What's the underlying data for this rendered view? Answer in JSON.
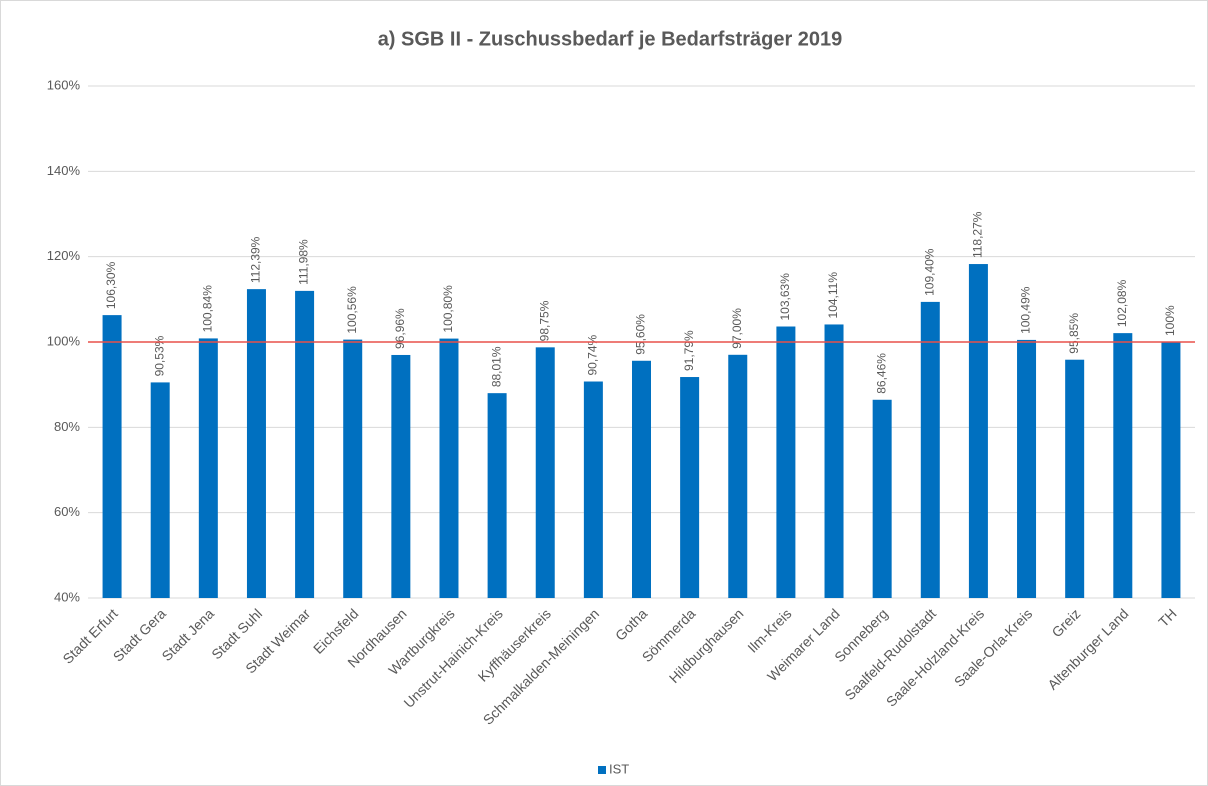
{
  "chart_data": {
    "type": "bar",
    "title": "a) SGB II - Zuschussbedarf je Bedarfsträger 2019",
    "categories": [
      "Stadt Erfurt",
      "Stadt Gera",
      "Stadt Jena",
      "Stadt Suhl",
      "Stadt Weimar",
      "Eichsfeld",
      "Nordhausen",
      "Wartburgkreis",
      "Unstrut-Hainich-Kreis",
      "Kyffhäuserkreis",
      "Schmalkalden-Meiningen",
      "Gotha",
      "Sömmerda",
      "Hildburghausen",
      "Ilm-Kreis",
      "Weimarer Land",
      "Sonneberg",
      "Saalfeld-Rudolstadt",
      "Saale-Holzland-Kreis",
      "Saale-Orla-Kreis",
      "Greiz",
      "Altenburger Land",
      "TH"
    ],
    "series": [
      {
        "name": "IST",
        "color": "#0070c0",
        "values": [
          106.3,
          90.53,
          100.84,
          112.39,
          111.98,
          100.56,
          96.96,
          100.8,
          88.01,
          98.75,
          90.74,
          95.6,
          91.79,
          97.0,
          103.63,
          104.11,
          86.46,
          109.4,
          118.27,
          100.49,
          95.85,
          102.08,
          100
        ],
        "value_labels": [
          "106,30%",
          "90,53%",
          "100,84%",
          "112,39%",
          "111,98%",
          "100,56%",
          "96,96%",
          "100,80%",
          "88,01%",
          "98,75%",
          "90,74%",
          "95,60%",
          "91,79%",
          "97,00%",
          "103,63%",
          "104,11%",
          "86,46%",
          "109,40%",
          "118,27%",
          "100,49%",
          "95,85%",
          "102,08%",
          "100%"
        ]
      }
    ],
    "reference_line": {
      "value": 100,
      "color": "#e8504a"
    },
    "ylim": [
      40,
      160
    ],
    "yticks": [
      {
        "value": 40,
        "label": "40%"
      },
      {
        "value": 60,
        "label": "60%"
      },
      {
        "value": 80,
        "label": "80%"
      },
      {
        "value": 100,
        "label": "100%"
      },
      {
        "value": 120,
        "label": "120%"
      },
      {
        "value": 140,
        "label": "140%"
      },
      {
        "value": 160,
        "label": "160%"
      }
    ],
    "grid": true,
    "legend": "bottom"
  }
}
